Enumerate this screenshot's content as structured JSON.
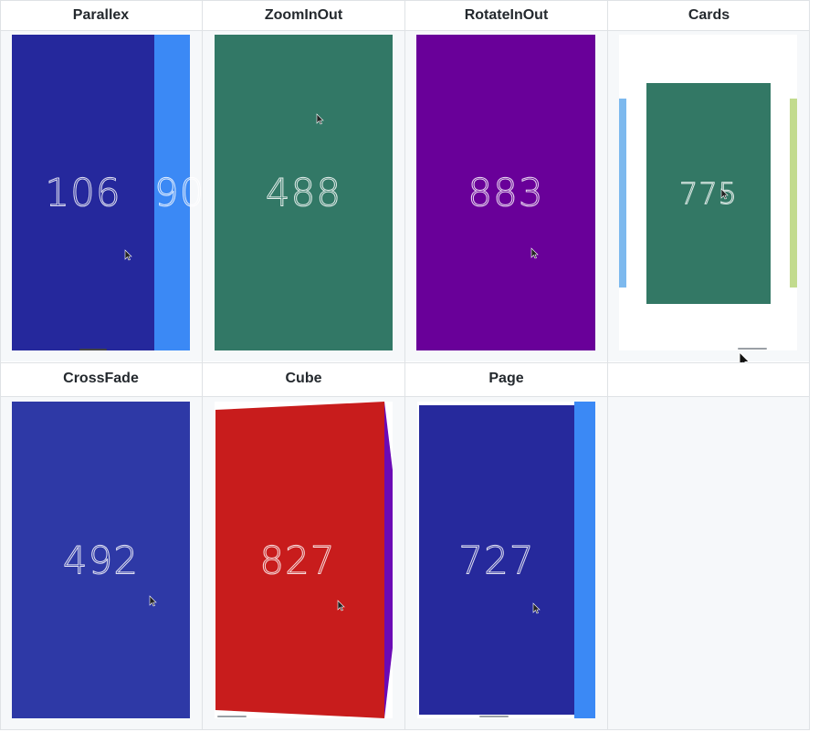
{
  "headers": {
    "parallax": "Parallex",
    "zoominout": "ZoomInOut",
    "rotateinout": "RotateInOut",
    "cards": "Cards",
    "crossfade": "CrossFade",
    "cube": "Cube",
    "page": "Page"
  },
  "numbers": {
    "parallax_main": "106",
    "parallax_next": "90",
    "zoominout": "488",
    "rotateinout": "883",
    "cards": "775",
    "crossfade": "492",
    "cube": "827",
    "page": "727"
  },
  "colors": {
    "parallax_main": "#25289c",
    "parallax_next": "#3b89f5",
    "zoominout": "#327866",
    "rotateinout": "#690099",
    "cards_bg": "#ffffff",
    "cards_center": "#337865",
    "cards_left": "#7db9ee",
    "cards_right": "#c2db8e",
    "crossfade": "#2e39a6",
    "cube_front": "#c81c1c",
    "cube_side": "#6b0ab5",
    "page_main": "#26299c",
    "page_next": "#3b89f5",
    "grid_line": "#dfe2e5",
    "cell_bg": "#f6f8fa"
  },
  "icons": {
    "cursor": "mouse-pointer-icon"
  }
}
